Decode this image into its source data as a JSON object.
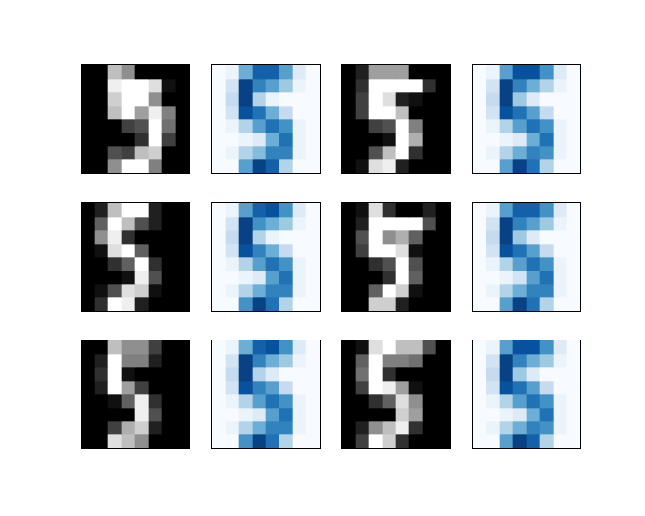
{
  "chart_data": [
    {
      "type": "heatmap",
      "color": "gray",
      "zlim": [
        0,
        16
      ],
      "tick_labels": false,
      "grid": false,
      "cells": [
        [
          0,
          0,
          12,
          9,
          0,
          0,
          0,
          0
        ],
        [
          0,
          0,
          15,
          16,
          16,
          14,
          1,
          0
        ],
        [
          0,
          0,
          13,
          16,
          16,
          9,
          0,
          0
        ],
        [
          0,
          0,
          12,
          16,
          10,
          15,
          8,
          0
        ],
        [
          0,
          0,
          0,
          4,
          5,
          16,
          7,
          0
        ],
        [
          0,
          0,
          0,
          0,
          3,
          16,
          4,
          0
        ],
        [
          0,
          0,
          5,
          4,
          12,
          13,
          0,
          0
        ],
        [
          0,
          0,
          9,
          16,
          16,
          8,
          0,
          0
        ]
      ]
    },
    {
      "type": "heatmap",
      "color": "Blues",
      "zlim": [
        0,
        16
      ],
      "tick_labels": false,
      "grid": false,
      "cells": [
        [
          0,
          1,
          8,
          13,
          13,
          9,
          2,
          0
        ],
        [
          0,
          3,
          15,
          11,
          9,
          6,
          1,
          0
        ],
        [
          0,
          4,
          15,
          5,
          1,
          0,
          0,
          0
        ],
        [
          0,
          3,
          14,
          12,
          8,
          4,
          0,
          0
        ],
        [
          0,
          1,
          5,
          9,
          12,
          10,
          1,
          0
        ],
        [
          0,
          0,
          1,
          2,
          8,
          12,
          1,
          0
        ],
        [
          0,
          1,
          5,
          7,
          11,
          11,
          1,
          0
        ],
        [
          0,
          0,
          9,
          15,
          13,
          5,
          0,
          0
        ]
      ]
    },
    {
      "type": "heatmap",
      "color": "gray",
      "zlim": [
        0,
        16
      ],
      "tick_labels": false,
      "grid": false,
      "cells": [
        [
          0,
          2,
          10,
          10,
          10,
          0,
          0,
          0
        ],
        [
          0,
          3,
          16,
          16,
          16,
          16,
          3,
          0
        ],
        [
          0,
          4,
          16,
          14,
          2,
          1,
          0,
          0
        ],
        [
          0,
          4,
          16,
          16,
          12,
          0,
          0,
          0
        ],
        [
          0,
          0,
          4,
          5,
          16,
          8,
          0,
          0
        ],
        [
          0,
          0,
          0,
          1,
          16,
          11,
          0,
          0
        ],
        [
          0,
          0,
          5,
          12,
          16,
          3,
          0,
          0
        ],
        [
          0,
          1,
          14,
          15,
          2,
          0,
          0,
          0
        ]
      ]
    },
    {
      "type": "heatmap",
      "color": "Blues",
      "zlim": [
        0,
        16
      ],
      "tick_labels": false,
      "grid": false,
      "cells": [
        [
          0,
          1,
          9,
          14,
          14,
          10,
          2,
          0
        ],
        [
          0,
          3,
          15,
          11,
          8,
          5,
          1,
          0
        ],
        [
          0,
          4,
          15,
          6,
          2,
          0,
          0,
          0
        ],
        [
          0,
          3,
          14,
          12,
          9,
          4,
          0,
          0
        ],
        [
          0,
          1,
          5,
          9,
          12,
          10,
          1,
          0
        ],
        [
          0,
          0,
          1,
          2,
          8,
          12,
          1,
          0
        ],
        [
          0,
          1,
          5,
          8,
          11,
          10,
          1,
          0
        ],
        [
          0,
          0,
          9,
          15,
          12,
          5,
          0,
          0
        ]
      ]
    },
    {
      "type": "heatmap",
      "color": "gray",
      "zlim": [
        0,
        16
      ],
      "tick_labels": false,
      "grid": false,
      "cells": [
        [
          0,
          2,
          12,
          16,
          16,
          2,
          0,
          0
        ],
        [
          0,
          6,
          16,
          12,
          5,
          2,
          0,
          0
        ],
        [
          0,
          9,
          15,
          3,
          0,
          0,
          0,
          0
        ],
        [
          0,
          1,
          14,
          16,
          6,
          0,
          0,
          0
        ],
        [
          0,
          0,
          3,
          6,
          16,
          3,
          0,
          0
        ],
        [
          0,
          0,
          0,
          1,
          15,
          5,
          0,
          0
        ],
        [
          0,
          1,
          5,
          14,
          13,
          1,
          0,
          0
        ],
        [
          0,
          3,
          16,
          15,
          2,
          0,
          0,
          0
        ]
      ]
    },
    {
      "type": "heatmap",
      "color": "Blues",
      "zlim": [
        0,
        16
      ],
      "tick_labels": false,
      "grid": false,
      "cells": [
        [
          0,
          1,
          9,
          13,
          14,
          10,
          2,
          0
        ],
        [
          0,
          3,
          15,
          10,
          8,
          6,
          1,
          0
        ],
        [
          0,
          4,
          15,
          5,
          1,
          0,
          0,
          0
        ],
        [
          0,
          3,
          14,
          11,
          8,
          4,
          0,
          0
        ],
        [
          0,
          1,
          5,
          9,
          12,
          10,
          1,
          0
        ],
        [
          0,
          0,
          1,
          2,
          9,
          12,
          1,
          0
        ],
        [
          0,
          1,
          5,
          8,
          11,
          11,
          1,
          0
        ],
        [
          0,
          0,
          10,
          15,
          12,
          5,
          0,
          0
        ]
      ]
    },
    {
      "type": "heatmap",
      "color": "gray",
      "zlim": [
        0,
        16
      ],
      "tick_labels": false,
      "grid": false,
      "cells": [
        [
          0,
          1,
          14,
          3,
          0,
          0,
          2,
          0
        ],
        [
          0,
          2,
          16,
          16,
          16,
          16,
          5,
          0
        ],
        [
          0,
          5,
          16,
          9,
          11,
          6,
          0,
          0
        ],
        [
          0,
          4,
          16,
          16,
          14,
          1,
          0,
          0
        ],
        [
          0,
          0,
          3,
          5,
          16,
          5,
          0,
          0
        ],
        [
          0,
          0,
          0,
          3,
          16,
          6,
          0,
          0
        ],
        [
          0,
          0,
          6,
          16,
          13,
          1,
          0,
          0
        ],
        [
          0,
          0,
          13,
          13,
          2,
          0,
          0,
          0
        ]
      ]
    },
    {
      "type": "heatmap",
      "color": "Blues",
      "zlim": [
        0,
        16
      ],
      "tick_labels": false,
      "grid": false,
      "cells": [
        [
          0,
          1,
          9,
          13,
          13,
          10,
          2,
          0
        ],
        [
          0,
          3,
          15,
          11,
          9,
          6,
          1,
          0
        ],
        [
          0,
          4,
          15,
          6,
          2,
          0,
          0,
          0
        ],
        [
          0,
          3,
          14,
          12,
          9,
          4,
          0,
          0
        ],
        [
          0,
          1,
          5,
          9,
          12,
          10,
          1,
          0
        ],
        [
          0,
          0,
          1,
          3,
          9,
          12,
          1,
          0
        ],
        [
          0,
          1,
          5,
          8,
          11,
          11,
          1,
          0
        ],
        [
          0,
          0,
          9,
          15,
          12,
          5,
          0,
          0
        ]
      ]
    },
    {
      "type": "heatmap",
      "color": "gray",
      "zlim": [
        0,
        16
      ],
      "tick_labels": false,
      "grid": false,
      "cells": [
        [
          0,
          0,
          12,
          9,
          9,
          4,
          0,
          0
        ],
        [
          0,
          2,
          16,
          8,
          8,
          2,
          0,
          0
        ],
        [
          0,
          3,
          16,
          1,
          0,
          0,
          0,
          0
        ],
        [
          0,
          2,
          16,
          10,
          4,
          0,
          0,
          0
        ],
        [
          0,
          0,
          1,
          6,
          15,
          3,
          0,
          0
        ],
        [
          0,
          0,
          0,
          0,
          15,
          5,
          0,
          0
        ],
        [
          0,
          0,
          4,
          11,
          13,
          2,
          0,
          0
        ],
        [
          0,
          0,
          14,
          12,
          9,
          0,
          0,
          0
        ]
      ]
    },
    {
      "type": "heatmap",
      "color": "Blues",
      "zlim": [
        0,
        16
      ],
      "tick_labels": false,
      "grid": false,
      "cells": [
        [
          0,
          1,
          8,
          13,
          14,
          10,
          2,
          0
        ],
        [
          0,
          3,
          15,
          11,
          8,
          6,
          1,
          0
        ],
        [
          0,
          4,
          15,
          5,
          2,
          0,
          0,
          0
        ],
        [
          0,
          3,
          14,
          11,
          9,
          4,
          0,
          0
        ],
        [
          0,
          1,
          5,
          9,
          12,
          10,
          1,
          0
        ],
        [
          0,
          0,
          1,
          2,
          9,
          12,
          1,
          0
        ],
        [
          0,
          1,
          5,
          8,
          11,
          11,
          1,
          0
        ],
        [
          0,
          0,
          10,
          15,
          12,
          5,
          0,
          0
        ]
      ]
    },
    {
      "type": "heatmap",
      "color": "gray",
      "zlim": [
        0,
        16
      ],
      "tick_labels": false,
      "grid": false,
      "cells": [
        [
          0,
          1,
          14,
          16,
          12,
          12,
          5,
          0
        ],
        [
          0,
          6,
          16,
          8,
          8,
          7,
          0,
          0
        ],
        [
          0,
          7,
          16,
          3,
          0,
          0,
          0,
          0
        ],
        [
          0,
          4,
          16,
          15,
          10,
          1,
          0,
          0
        ],
        [
          0,
          0,
          3,
          6,
          14,
          9,
          0,
          0
        ],
        [
          0,
          0,
          0,
          0,
          13,
          10,
          0,
          0
        ],
        [
          0,
          2,
          9,
          12,
          15,
          3,
          0,
          0
        ],
        [
          0,
          4,
          16,
          13,
          3,
          0,
          0,
          0
        ]
      ]
    },
    {
      "type": "heatmap",
      "color": "Blues",
      "zlim": [
        0,
        16
      ],
      "tick_labels": false,
      "grid": false,
      "cells": [
        [
          0,
          1,
          9,
          14,
          14,
          10,
          2,
          0
        ],
        [
          0,
          3,
          15,
          11,
          8,
          6,
          1,
          0
        ],
        [
          0,
          4,
          15,
          6,
          2,
          0,
          0,
          0
        ],
        [
          0,
          3,
          14,
          12,
          9,
          4,
          0,
          0
        ],
        [
          0,
          1,
          5,
          9,
          12,
          10,
          1,
          0
        ],
        [
          0,
          0,
          1,
          2,
          8,
          12,
          1,
          0
        ],
        [
          0,
          1,
          5,
          8,
          11,
          10,
          1,
          0
        ],
        [
          0,
          0,
          9,
          15,
          13,
          5,
          0,
          0
        ]
      ]
    }
  ]
}
